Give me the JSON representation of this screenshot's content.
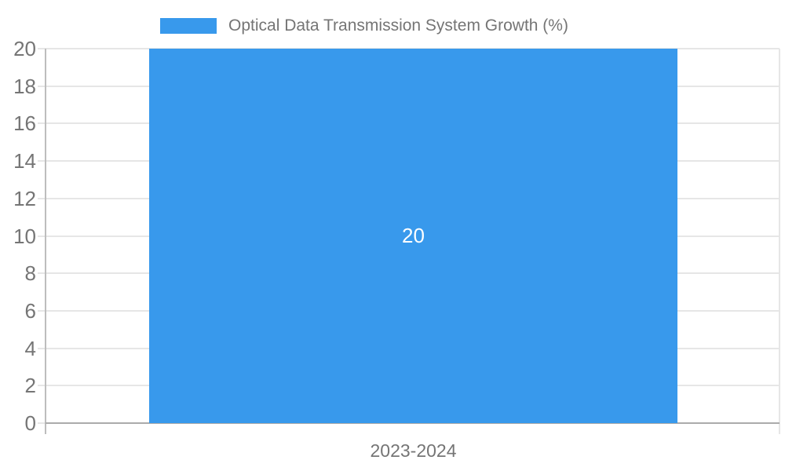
{
  "chart_data": {
    "type": "bar",
    "title": "",
    "categories": [
      "2023-2024"
    ],
    "values": [
      20
    ],
    "series": [
      {
        "name": "Optical Data Transmission System Growth (%)",
        "values": [
          20
        ]
      }
    ],
    "xlabel": "",
    "ylabel": "",
    "ylim": [
      0,
      20
    ],
    "yticks": [
      0,
      2,
      4,
      6,
      8,
      10,
      12,
      14,
      16,
      18,
      20
    ],
    "grid": true,
    "legend_position": "top-center",
    "bar_value_label": "20"
  },
  "colors": {
    "bar": "#3899EC",
    "gridline": "#E6E6E6",
    "axis_line": "#BDBDBD",
    "baseline": "#ABABAB",
    "tick_text": "#757575",
    "legend_text": "#757575",
    "category_text": "#757575",
    "bar_label_text": "#FFFFFF"
  }
}
